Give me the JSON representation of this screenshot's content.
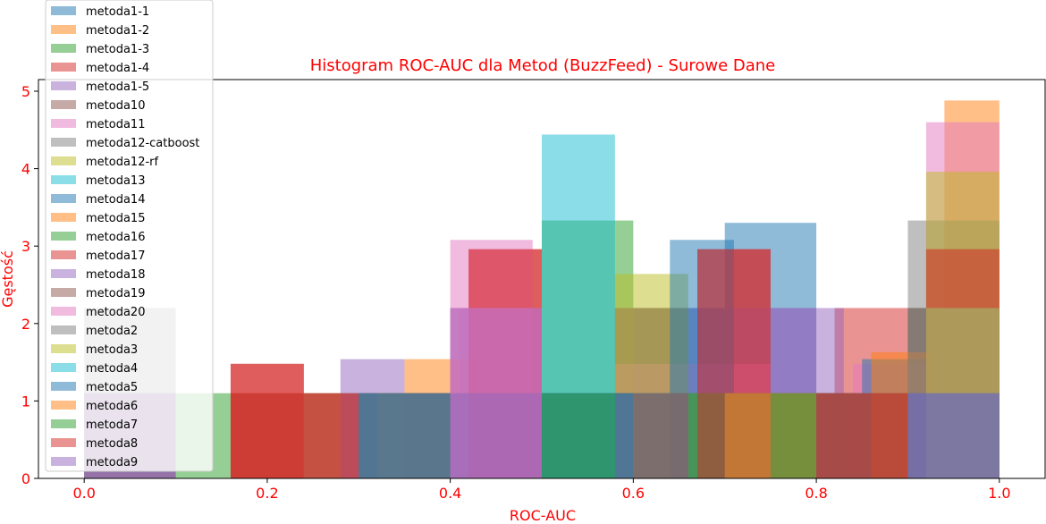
{
  "chart_data": {
    "type": "bar",
    "title": "Histogram ROC-AUC dla Metod (BuzzFeed) - Surowe Dane",
    "xlabel": "ROC-AUC",
    "ylabel": "Gęstość",
    "xlim": [
      -0.05,
      1.05
    ],
    "ylim": [
      0,
      5.15
    ],
    "x_ticks": [
      0.0,
      0.2,
      0.4,
      0.6,
      0.8,
      1.0
    ],
    "x_tick_labels": [
      "0.0",
      "0.2",
      "0.4",
      "0.6",
      "0.8",
      "1.0"
    ],
    "y_ticks": [
      0,
      1,
      2,
      3,
      4,
      5
    ],
    "y_tick_labels": [
      "0",
      "1",
      "2",
      "3",
      "4",
      "5"
    ],
    "label_color": "#ff0000",
    "bar_opacity": 0.5,
    "legend_position": "upper-left",
    "series": [
      {
        "name": "metoda1-1",
        "color": "#1f77b4",
        "bins": [
          [
            0.3,
            0.4,
            1.1
          ],
          [
            0.4,
            0.5,
            2.2
          ],
          [
            0.5,
            0.6,
            1.1
          ],
          [
            0.6,
            0.7,
            2.2
          ],
          [
            0.7,
            0.8,
            3.3
          ],
          [
            0.8,
            0.9,
            1.1
          ],
          [
            0.9,
            1.0,
            2.2
          ]
        ]
      },
      {
        "name": "metoda1-2",
        "color": "#ff7f0e",
        "bins": [
          [
            0.35,
            0.43,
            1.54
          ],
          [
            0.43,
            0.5,
            1.1
          ],
          [
            0.5,
            0.58,
            1.1
          ],
          [
            0.58,
            0.65,
            1.1
          ],
          [
            0.65,
            0.73,
            1.1
          ],
          [
            0.73,
            0.8,
            1.1
          ],
          [
            0.8,
            0.88,
            1.1
          ],
          [
            0.88,
            0.94,
            1.1
          ],
          [
            0.94,
            1.0,
            4.88
          ]
        ]
      },
      {
        "name": "metoda1-3",
        "color": "#2ca02c",
        "bins": [
          [
            0.1,
            0.16,
            1.1
          ],
          [
            0.16,
            0.24,
            1.1
          ],
          [
            0.24,
            0.32,
            1.1
          ],
          [
            0.32,
            0.4,
            1.1
          ],
          [
            0.4,
            0.5,
            1.1
          ],
          [
            0.5,
            0.6,
            3.33
          ],
          [
            0.6,
            0.7,
            1.1
          ],
          [
            0.7,
            0.8,
            1.1
          ],
          [
            0.8,
            0.9,
            1.1
          ],
          [
            0.9,
            1.0,
            2.2
          ]
        ]
      },
      {
        "name": "metoda1-4",
        "color": "#d62728",
        "bins": [
          [
            0.16,
            0.24,
            1.48
          ],
          [
            0.24,
            0.32,
            1.1
          ],
          [
            0.42,
            0.5,
            2.96
          ],
          [
            0.67,
            0.75,
            2.96
          ],
          [
            0.75,
            0.82,
            1.1
          ],
          [
            0.82,
            0.92,
            2.2
          ],
          [
            0.92,
            1.0,
            2.96
          ]
        ]
      },
      {
        "name": "metoda1-5",
        "color": "#9467bd",
        "bins": [
          [
            0.28,
            0.35,
            1.54
          ],
          [
            0.35,
            0.41,
            1.1
          ],
          [
            0.41,
            0.5,
            2.2
          ],
          [
            0.5,
            0.58,
            1.1
          ],
          [
            0.58,
            0.66,
            2.2
          ],
          [
            0.66,
            0.75,
            2.2
          ],
          [
            0.75,
            0.83,
            2.2
          ],
          [
            0.83,
            0.92,
            1.1
          ],
          [
            0.92,
            1.0,
            2.2
          ]
        ]
      },
      {
        "name": "metoda10",
        "color": "#8c564b",
        "bins": [
          [
            0.58,
            0.66,
            2.2
          ],
          [
            0.66,
            0.76,
            1.1
          ],
          [
            0.76,
            0.86,
            1.1
          ],
          [
            0.86,
            0.94,
            1.1
          ],
          [
            0.94,
            1.0,
            2.2
          ]
        ]
      },
      {
        "name": "metoda11",
        "color": "#e377c2",
        "bins": [
          [
            0.0,
            0.1,
            1.1
          ],
          [
            0.4,
            0.49,
            3.08
          ],
          [
            0.49,
            0.58,
            1.1
          ],
          [
            0.58,
            0.66,
            1.48
          ],
          [
            0.66,
            0.75,
            1.48
          ],
          [
            0.75,
            0.84,
            1.1
          ],
          [
            0.84,
            0.92,
            1.48
          ],
          [
            0.92,
            1.0,
            4.6
          ]
        ]
      },
      {
        "name": "metoda12-catboost",
        "color": "#7f7f7f",
        "bins": [
          [
            0.0,
            0.1,
            1.1
          ],
          [
            0.3,
            0.4,
            1.1
          ],
          [
            0.4,
            0.5,
            1.1
          ],
          [
            0.5,
            0.6,
            1.1
          ],
          [
            0.6,
            0.7,
            1.1
          ],
          [
            0.7,
            0.8,
            1.1
          ],
          [
            0.8,
            0.9,
            1.1
          ],
          [
            0.9,
            1.0,
            3.33
          ]
        ]
      },
      {
        "name": "metoda12-rf",
        "color": "#bcbd22",
        "bins": [
          [
            0.58,
            0.66,
            2.64
          ],
          [
            0.66,
            0.76,
            1.1
          ],
          [
            0.76,
            0.84,
            1.1
          ],
          [
            0.84,
            0.92,
            1.1
          ],
          [
            0.92,
            1.0,
            3.96
          ]
        ]
      },
      {
        "name": "metoda13",
        "color": "#17becf",
        "bins": [
          [
            0.0,
            0.1,
            1.1
          ],
          [
            0.5,
            0.58,
            4.44
          ],
          [
            0.58,
            0.66,
            1.1
          ]
        ]
      },
      {
        "name": "metoda14",
        "color": "#1f77b4",
        "bins": [
          [
            0.64,
            0.71,
            3.08
          ],
          [
            0.71,
            0.78,
            1.1
          ],
          [
            0.78,
            0.85,
            1.1
          ],
          [
            0.85,
            0.92,
            1.54
          ],
          [
            0.92,
            1.0,
            2.2
          ]
        ]
      },
      {
        "name": "metoda15",
        "color": "#ff7f0e",
        "bins": [
          [
            0.32,
            0.4,
            1.1
          ],
          [
            0.86,
            0.93,
            1.63
          ]
        ]
      },
      {
        "name": "metoda16",
        "color": "#2ca02c",
        "bins": [
          [
            0.5,
            0.58,
            1.1
          ],
          [
            0.58,
            0.66,
            1.1
          ],
          [
            0.66,
            0.75,
            1.1
          ]
        ]
      },
      {
        "name": "metoda17",
        "color": "#d62728",
        "bins": [
          [
            0.16,
            0.24,
            1.48
          ],
          [
            0.24,
            0.3,
            1.1
          ],
          [
            0.42,
            0.5,
            2.96
          ],
          [
            0.67,
            0.75,
            2.96
          ],
          [
            0.92,
            1.0,
            2.96
          ]
        ]
      },
      {
        "name": "metoda18",
        "color": "#9467bd",
        "bins": [
          [
            0.4,
            0.5,
            2.2
          ],
          [
            0.5,
            0.58,
            1.1
          ],
          [
            0.58,
            0.66,
            1.1
          ],
          [
            0.75,
            0.8,
            2.2
          ],
          [
            0.92,
            1.0,
            2.2
          ]
        ]
      },
      {
        "name": "metoda19",
        "color": "#8c564b",
        "bins": [
          [
            0.0,
            0.1,
            1.1
          ],
          [
            0.3,
            0.4,
            1.1
          ],
          [
            0.58,
            0.66,
            1.1
          ],
          [
            0.8,
            0.9,
            1.1
          ],
          [
            0.9,
            1.0,
            1.1
          ]
        ]
      },
      {
        "name": "metoda20",
        "color": "#e377c2",
        "bins": [
          [
            0.0,
            0.1,
            1.1
          ],
          [
            0.4,
            0.5,
            2.2
          ],
          [
            0.92,
            1.0,
            2.2
          ]
        ]
      },
      {
        "name": "metoda2",
        "color": "#7f7f7f",
        "bins": [
          [
            0.0,
            0.1,
            2.2
          ],
          [
            0.3,
            0.4,
            1.1
          ],
          [
            0.5,
            0.6,
            1.1
          ],
          [
            0.7,
            0.8,
            1.1
          ],
          [
            0.9,
            1.0,
            2.2
          ]
        ]
      },
      {
        "name": "metoda3",
        "color": "#bcbd22",
        "bins": [
          [
            0.92,
            1.0,
            2.2
          ]
        ]
      },
      {
        "name": "metoda4",
        "color": "#17becf",
        "bins": [
          [
            0.5,
            0.58,
            1.1
          ]
        ]
      },
      {
        "name": "metoda5",
        "color": "#1f77b4",
        "bins": [
          [
            0.3,
            0.4,
            1.1
          ],
          [
            0.5,
            0.6,
            1.1
          ],
          [
            0.9,
            1.0,
            1.1
          ]
        ]
      },
      {
        "name": "metoda6",
        "color": "#ff7f0e",
        "bins": [
          [
            0.7,
            0.8,
            1.1
          ]
        ]
      },
      {
        "name": "metoda7",
        "color": "#2ca02c",
        "bins": [
          [
            0.5,
            0.58,
            1.1
          ],
          [
            0.75,
            0.8,
            1.1
          ]
        ]
      },
      {
        "name": "metoda8",
        "color": "#d62728",
        "bins": [
          [
            0.16,
            0.24,
            1.1
          ],
          [
            0.8,
            0.9,
            1.1
          ]
        ]
      },
      {
        "name": "metoda9",
        "color": "#9467bd",
        "bins": [
          [
            0.0,
            0.1,
            1.1
          ],
          [
            0.4,
            0.5,
            1.1
          ],
          [
            0.9,
            1.0,
            1.1
          ]
        ]
      }
    ]
  }
}
